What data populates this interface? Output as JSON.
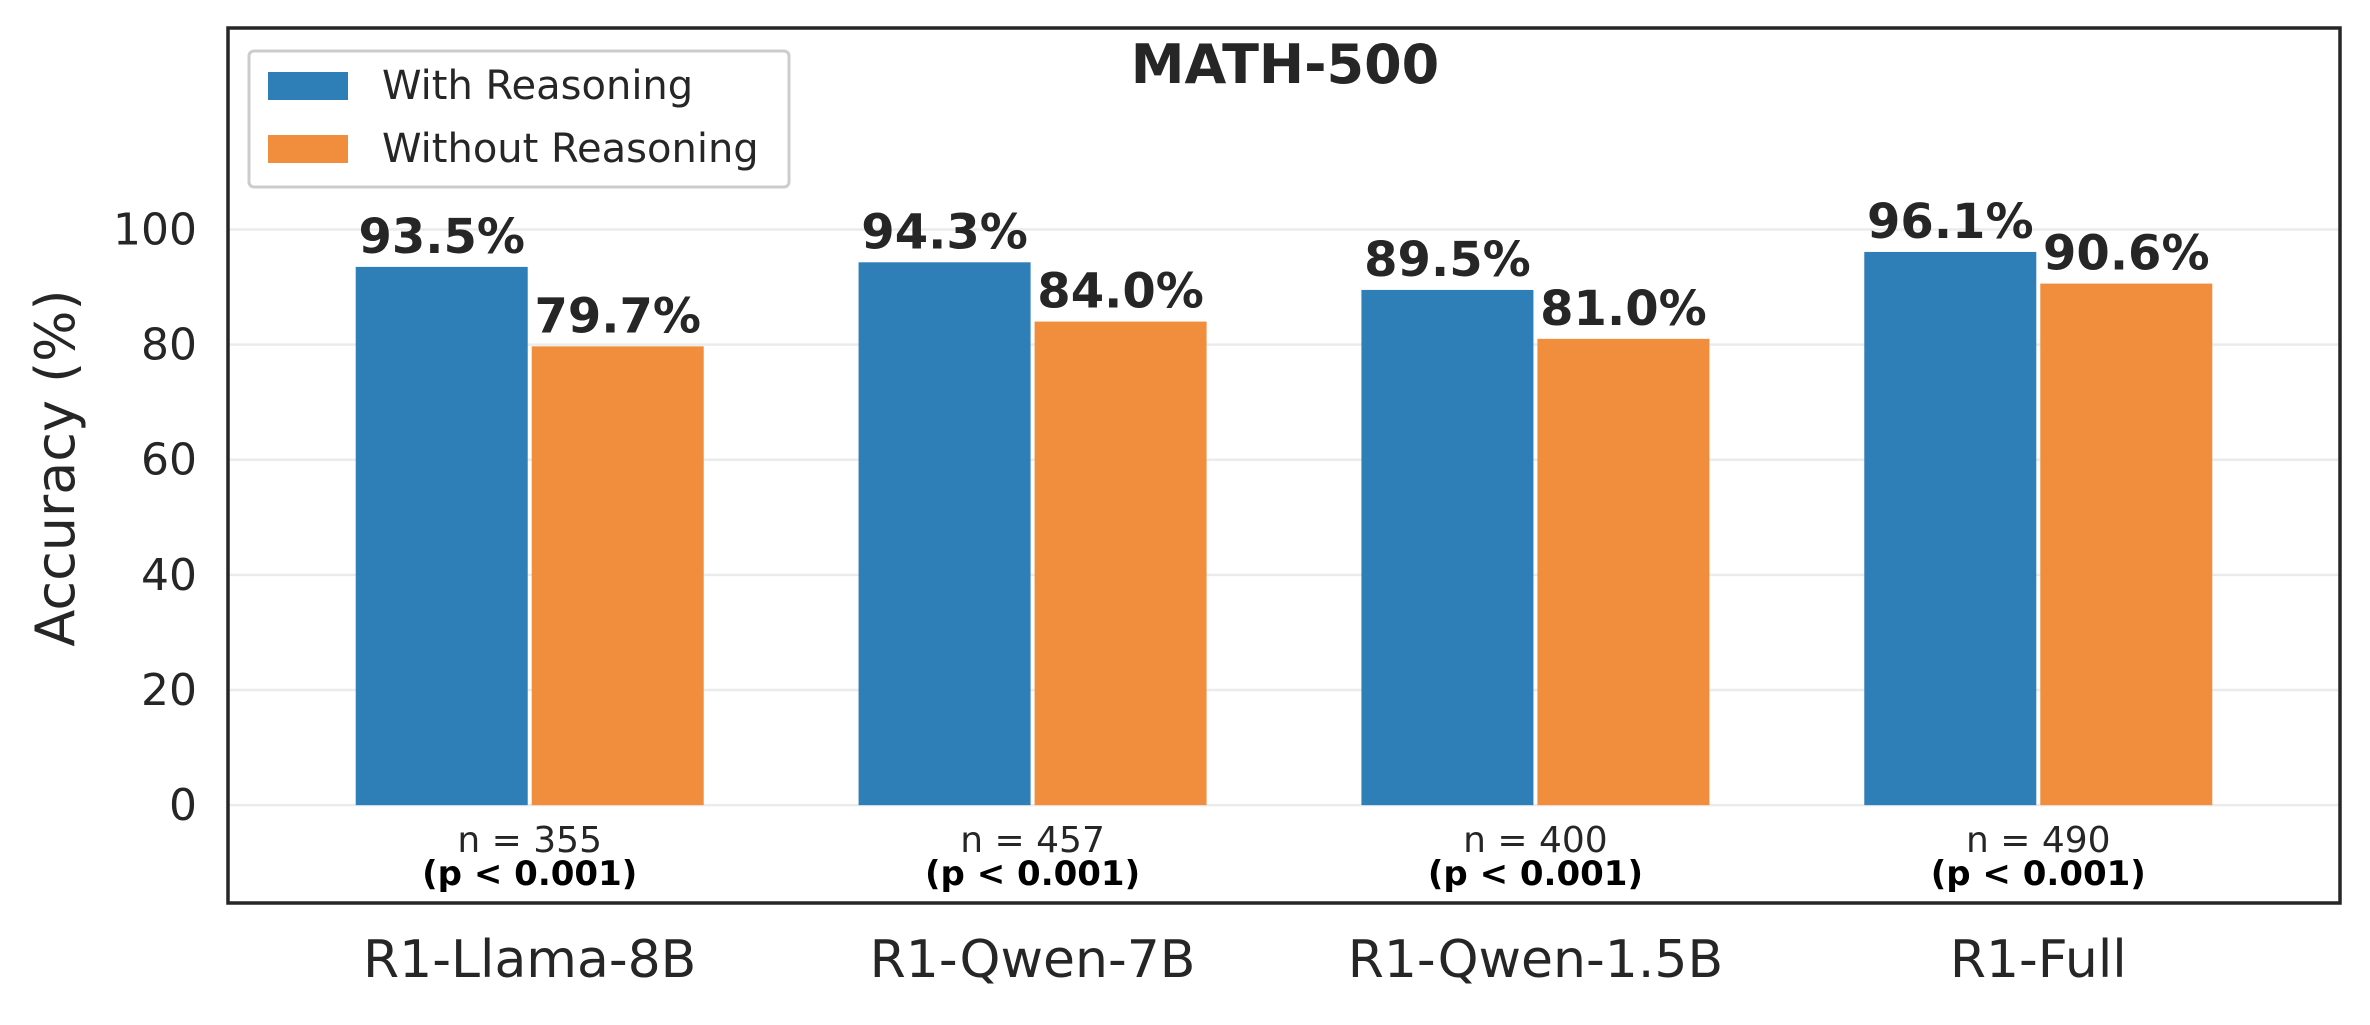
{
  "chart_data": {
    "type": "bar",
    "title": "MATH-500",
    "xlabel": "",
    "ylabel": "Accuracy (%)",
    "ylim": [
      -17,
      135
    ],
    "yticks": [
      0,
      20,
      40,
      60,
      80,
      100
    ],
    "grid": true,
    "legend_position": "top-left",
    "categories": [
      "R1-Llama-8B",
      "R1-Qwen-7B",
      "R1-Qwen-1.5B",
      "R1-Full"
    ],
    "series": [
      {
        "name": "With Reasoning",
        "color": "#2e7eb8",
        "values": [
          93.5,
          94.3,
          89.5,
          96.1
        ],
        "labels": [
          "93.5%",
          "94.3%",
          "89.5%",
          "96.1%"
        ]
      },
      {
        "name": "Without Reasoning",
        "color": "#f08e3d",
        "values": [
          79.7,
          84.0,
          81.0,
          90.6
        ],
        "labels": [
          "79.7%",
          "84.0%",
          "81.0%",
          "90.6%"
        ]
      }
    ],
    "annotations": {
      "n": [
        "n = 355",
        "n = 457",
        "n = 400",
        "n = 490"
      ],
      "p": [
        "(p < 0.001)",
        "(p < 0.001)",
        "(p < 0.001)",
        "(p < 0.001)"
      ]
    }
  }
}
